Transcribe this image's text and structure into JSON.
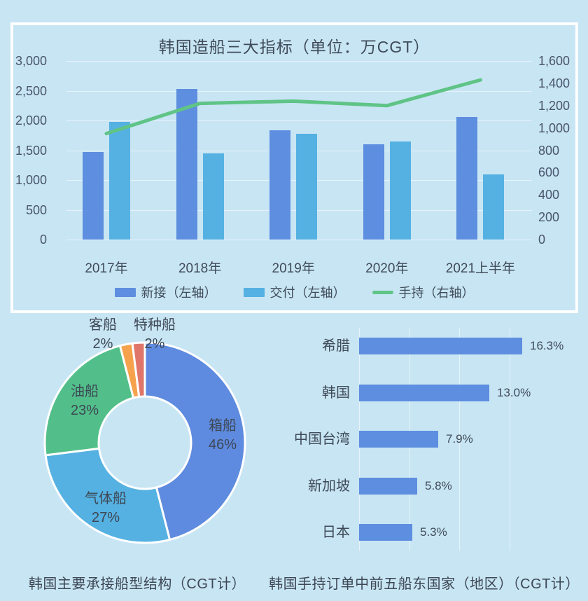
{
  "page": {
    "background": "#c8e5f4",
    "text_color": "#3d4a59",
    "panel_border_color": "#ffffff"
  },
  "chart_data": [
    {
      "type": "bar",
      "subtype": "combo-bar-line",
      "title": "韩国造船三大指标（单位：万CGT）",
      "categories": [
        "2017年",
        "2018年",
        "2019年",
        "2020年",
        "2021上半年"
      ],
      "series": [
        {
          "name": "新接（左轴）",
          "render": "bar",
          "axis": "left",
          "color": "#5e8edf",
          "values": [
            1470,
            2530,
            1840,
            1600,
            2060
          ]
        },
        {
          "name": "交付（左轴）",
          "render": "bar",
          "axis": "left",
          "color": "#55b1e2",
          "values": [
            1980,
            1450,
            1780,
            1650,
            1100
          ]
        },
        {
          "name": "手持（右轴）",
          "render": "line",
          "axis": "right",
          "color": "#5fc486",
          "values": [
            950,
            1220,
            1240,
            1200,
            1430
          ]
        }
      ],
      "left_axis": {
        "min": 0,
        "max": 3000,
        "tick_step": 500,
        "ticks": [
          "0",
          "500",
          "1,000",
          "1,500",
          "2,000",
          "2,500",
          "3,000"
        ]
      },
      "right_axis": {
        "min": 0,
        "max": 1600,
        "tick_step": 200,
        "ticks": [
          "0",
          "200",
          "400",
          "600",
          "800",
          "1,000",
          "1,200",
          "1,400",
          "1,600"
        ]
      },
      "grid": true,
      "legend_position": "bottom"
    },
    {
      "type": "pie",
      "subtype": "donut",
      "caption": "韩国主要承接船型结构（CGT计）",
      "slices": [
        {
          "label": "箱船",
          "value": 46,
          "text": "46%",
          "color": "#5e8bdf"
        },
        {
          "label": "气体船",
          "value": 27,
          "text": "27%",
          "color": "#55b1e2"
        },
        {
          "label": "油船",
          "value": 23,
          "text": "23%",
          "color": "#52bf8a"
        },
        {
          "label": "客船",
          "value": 2,
          "text": "2%",
          "color": "#f6a24d"
        },
        {
          "label": "特种船",
          "value": 2,
          "text": "2%",
          "color": "#e0766a"
        }
      ]
    },
    {
      "type": "bar",
      "orientation": "horizontal",
      "caption": "韩国手持订单中前五船东国家（地区）（CGT计）",
      "bar_color": "#5e8edf",
      "categories": [
        "希腊",
        "韩国",
        "中国台湾",
        "新加坡",
        "日本"
      ],
      "values": [
        16.3,
        13.0,
        7.9,
        5.8,
        5.3
      ],
      "value_labels": [
        "16.3%",
        "13.0%",
        "7.9%",
        "5.8%",
        "5.3%"
      ],
      "xmax": 17.5,
      "grid_step_pct": 5
    }
  ]
}
